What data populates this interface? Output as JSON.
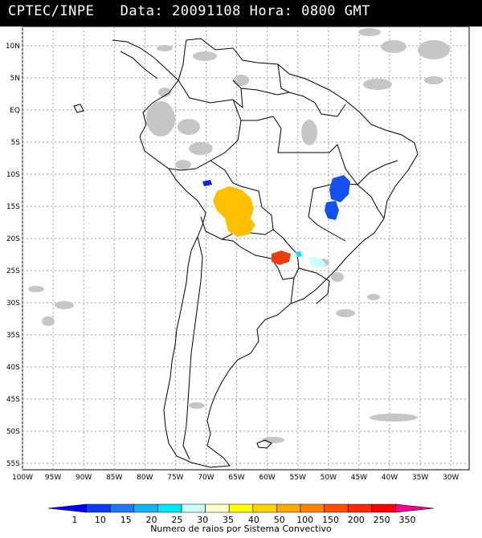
{
  "header": {
    "source": "CPTEC/INPE",
    "date_label": "Data:",
    "date_value": "20091108",
    "time_label": "Hora:",
    "time_value": "0800 GMT"
  },
  "axes": {
    "lat_labels": [
      "10N",
      "5N",
      "EQ",
      "5S",
      "10S",
      "15S",
      "20S",
      "25S",
      "30S",
      "35S",
      "40S",
      "45S",
      "50S",
      "55S"
    ],
    "lat_values": [
      10,
      5,
      0,
      -5,
      -10,
      -15,
      -20,
      -25,
      -30,
      -35,
      -40,
      -45,
      -50,
      -55
    ],
    "lon_labels": [
      "100W",
      "95W",
      "90W",
      "85W",
      "80W",
      "75W",
      "70W",
      "65W",
      "60W",
      "55W",
      "50W",
      "45W",
      "40W",
      "35W",
      "30W"
    ],
    "lon_values": [
      -100,
      -95,
      -90,
      -85,
      -80,
      -75,
      -70,
      -65,
      -60,
      -55,
      -50,
      -45,
      -40,
      -35,
      -30
    ],
    "lon_range": [
      -100,
      -27
    ],
    "lat_range": [
      -56,
      13
    ],
    "grid": true
  },
  "colorbar": {
    "labels": [
      "1",
      "10",
      "15",
      "20",
      "25",
      "30",
      "35",
      "40",
      "50",
      "100",
      "150",
      "200",
      "250",
      "350"
    ],
    "colors": [
      "#0000ff",
      "#0a3cf5",
      "#1e78f0",
      "#14b4f0",
      "#00e6ff",
      "#c8ffff",
      "#ffffc8",
      "#ffff00",
      "#ffd200",
      "#ffaa00",
      "#ff8200",
      "#ff5000",
      "#ff2800",
      "#ff0000",
      "#ff0096"
    ],
    "title": "Numero de raios por Sistema Convectivo"
  },
  "colors": {
    "coastline": "#000000",
    "cloud": "#c0c0c0",
    "grid": "#9a9a9a"
  }
}
